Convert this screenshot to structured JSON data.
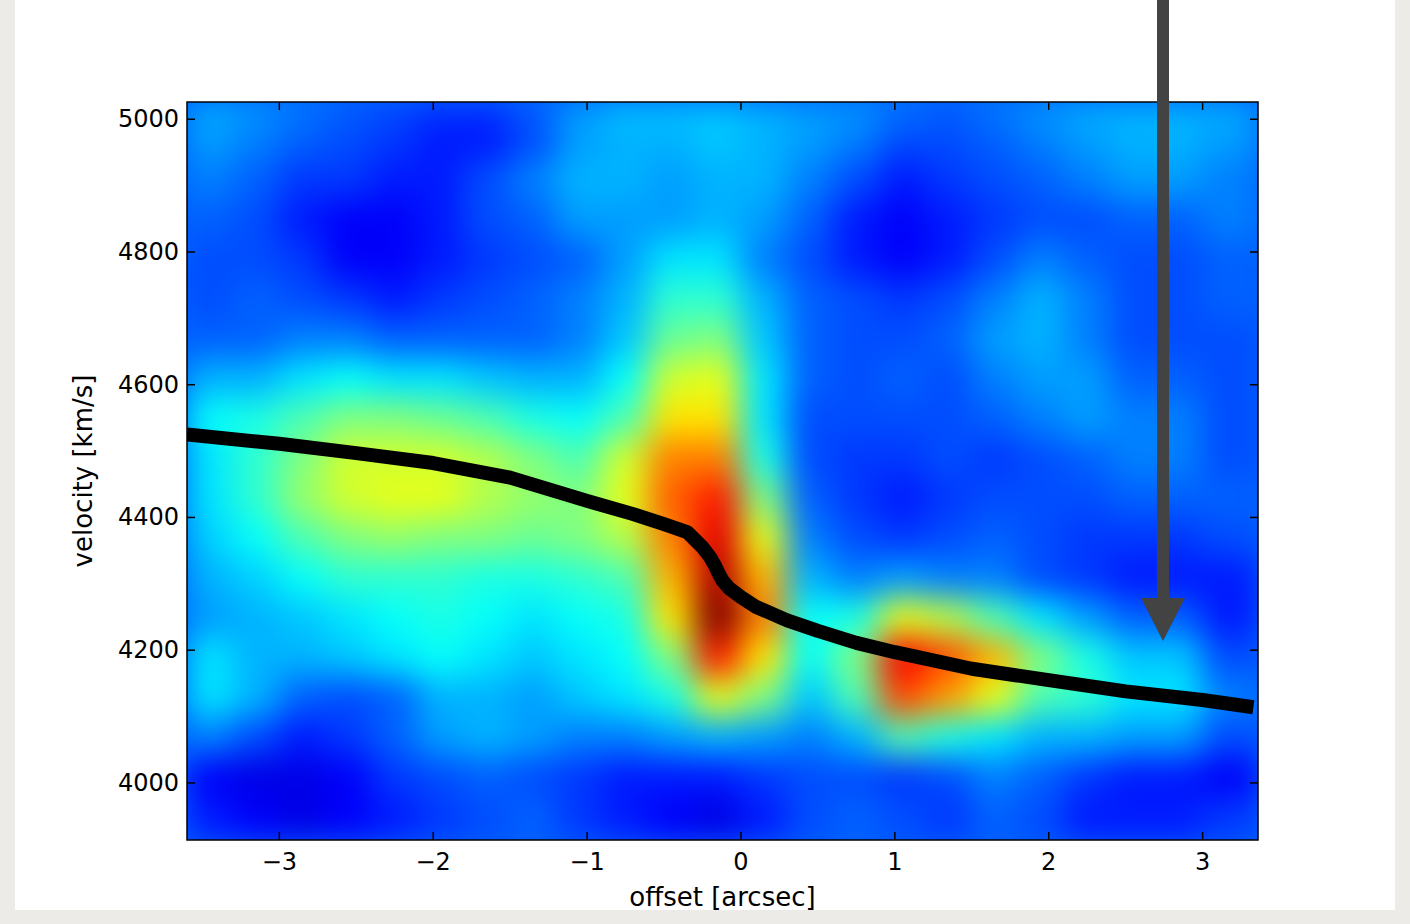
{
  "chart_data": {
    "type": "heatmap",
    "x_label": "offset [arcsec]",
    "y_label": "velocity [km/s]",
    "xlim": [
      -3.6,
      3.36
    ],
    "ylim": [
      3914,
      5026
    ],
    "xticks": [
      {
        "value": -3,
        "label": "−3"
      },
      {
        "value": -2,
        "label": "−2"
      },
      {
        "value": -1,
        "label": "−1"
      },
      0,
      1,
      2,
      3
    ],
    "yticks": [
      4000,
      4200,
      4400,
      4600,
      4800,
      5000
    ],
    "grid": false,
    "zlim": [
      0,
      1
    ],
    "x_edges": [
      -3.6,
      -3.3,
      -3.0,
      -2.7,
      -2.4,
      -2.1,
      -1.8,
      -1.5,
      -1.2,
      -0.9,
      -0.6,
      -0.3,
      0.0,
      0.3,
      0.6,
      0.9,
      1.2,
      1.5,
      1.8,
      2.1,
      2.4,
      3.0,
      3.36
    ],
    "y_edges": [
      3914,
      3980,
      4040,
      4100,
      4160,
      4220,
      4280,
      4340,
      4400,
      4460,
      4520,
      4580,
      4640,
      4700,
      4760,
      4820,
      4880,
      4940,
      5000,
      5026
    ],
    "z": [
      [
        0.15,
        0.12,
        0.1,
        0.12,
        0.15,
        0.18,
        0.2,
        0.22,
        0.18,
        0.15,
        0.12,
        0.1,
        0.15,
        0.2,
        0.22,
        0.2,
        0.18,
        0.22,
        0.2,
        0.15,
        0.15,
        0.18
      ],
      [
        0.12,
        0.1,
        0.1,
        0.12,
        0.18,
        0.2,
        0.22,
        0.2,
        0.18,
        0.15,
        0.15,
        0.15,
        0.18,
        0.2,
        0.2,
        0.18,
        0.2,
        0.25,
        0.22,
        0.18,
        0.15,
        0.12
      ],
      [
        0.25,
        0.2,
        0.15,
        0.18,
        0.22,
        0.28,
        0.3,
        0.28,
        0.25,
        0.25,
        0.28,
        0.3,
        0.28,
        0.25,
        0.3,
        0.45,
        0.4,
        0.35,
        0.3,
        0.3,
        0.28,
        0.2
      ],
      [
        0.35,
        0.3,
        0.22,
        0.2,
        0.22,
        0.3,
        0.3,
        0.28,
        0.32,
        0.35,
        0.4,
        0.6,
        0.5,
        0.32,
        0.45,
        0.8,
        0.72,
        0.6,
        0.45,
        0.42,
        0.35,
        0.25
      ],
      [
        0.35,
        0.3,
        0.3,
        0.32,
        0.35,
        0.38,
        0.35,
        0.32,
        0.35,
        0.38,
        0.5,
        0.85,
        0.65,
        0.38,
        0.5,
        0.88,
        0.8,
        0.7,
        0.5,
        0.4,
        0.32,
        0.2
      ],
      [
        0.28,
        0.3,
        0.32,
        0.35,
        0.38,
        0.4,
        0.38,
        0.35,
        0.38,
        0.4,
        0.65,
        1.0,
        0.75,
        0.38,
        0.4,
        0.6,
        0.55,
        0.45,
        0.35,
        0.28,
        0.22,
        0.15
      ],
      [
        0.3,
        0.33,
        0.38,
        0.42,
        0.42,
        0.42,
        0.4,
        0.4,
        0.42,
        0.45,
        0.7,
        0.95,
        0.7,
        0.3,
        0.25,
        0.28,
        0.25,
        0.25,
        0.2,
        0.18,
        0.15,
        0.15
      ],
      [
        0.33,
        0.38,
        0.45,
        0.5,
        0.52,
        0.5,
        0.5,
        0.48,
        0.5,
        0.55,
        0.75,
        0.9,
        0.6,
        0.25,
        0.2,
        0.18,
        0.2,
        0.22,
        0.2,
        0.18,
        0.18,
        0.2
      ],
      [
        0.35,
        0.42,
        0.52,
        0.58,
        0.6,
        0.6,
        0.55,
        0.52,
        0.5,
        0.6,
        0.78,
        0.85,
        0.5,
        0.22,
        0.18,
        0.15,
        0.18,
        0.2,
        0.2,
        0.2,
        0.22,
        0.22
      ],
      [
        0.35,
        0.42,
        0.5,
        0.58,
        0.58,
        0.58,
        0.55,
        0.5,
        0.45,
        0.58,
        0.75,
        0.75,
        0.4,
        0.2,
        0.18,
        0.18,
        0.2,
        0.18,
        0.2,
        0.22,
        0.25,
        0.2
      ],
      [
        0.38,
        0.4,
        0.45,
        0.5,
        0.5,
        0.48,
        0.45,
        0.4,
        0.38,
        0.45,
        0.65,
        0.65,
        0.35,
        0.2,
        0.2,
        0.2,
        0.2,
        0.22,
        0.25,
        0.28,
        0.25,
        0.2
      ],
      [
        0.3,
        0.3,
        0.35,
        0.38,
        0.35,
        0.35,
        0.32,
        0.3,
        0.3,
        0.38,
        0.58,
        0.6,
        0.35,
        0.22,
        0.2,
        0.22,
        0.2,
        0.25,
        0.28,
        0.28,
        0.22,
        0.2
      ],
      [
        0.22,
        0.22,
        0.25,
        0.25,
        0.22,
        0.22,
        0.22,
        0.22,
        0.25,
        0.32,
        0.48,
        0.5,
        0.32,
        0.22,
        0.2,
        0.2,
        0.22,
        0.28,
        0.3,
        0.25,
        0.2,
        0.2
      ],
      [
        0.2,
        0.22,
        0.2,
        0.18,
        0.15,
        0.18,
        0.2,
        0.22,
        0.25,
        0.3,
        0.42,
        0.42,
        0.3,
        0.22,
        0.2,
        0.18,
        0.2,
        0.25,
        0.3,
        0.25,
        0.2,
        0.22
      ],
      [
        0.2,
        0.2,
        0.18,
        0.12,
        0.12,
        0.15,
        0.18,
        0.2,
        0.22,
        0.28,
        0.35,
        0.35,
        0.25,
        0.2,
        0.15,
        0.12,
        0.15,
        0.2,
        0.25,
        0.22,
        0.2,
        0.22
      ],
      [
        0.22,
        0.2,
        0.15,
        0.12,
        0.12,
        0.15,
        0.2,
        0.22,
        0.28,
        0.28,
        0.28,
        0.3,
        0.28,
        0.22,
        0.15,
        0.12,
        0.15,
        0.18,
        0.2,
        0.2,
        0.22,
        0.25
      ],
      [
        0.25,
        0.22,
        0.18,
        0.18,
        0.15,
        0.15,
        0.2,
        0.25,
        0.3,
        0.3,
        0.28,
        0.3,
        0.3,
        0.25,
        0.2,
        0.15,
        0.18,
        0.2,
        0.22,
        0.25,
        0.28,
        0.25
      ],
      [
        0.28,
        0.25,
        0.22,
        0.2,
        0.18,
        0.15,
        0.15,
        0.2,
        0.28,
        0.3,
        0.3,
        0.32,
        0.3,
        0.28,
        0.25,
        0.2,
        0.2,
        0.22,
        0.25,
        0.28,
        0.3,
        0.28
      ],
      [
        0.3,
        0.28,
        0.25,
        0.22,
        0.2,
        0.18,
        0.18,
        0.22,
        0.28,
        0.32,
        0.32,
        0.32,
        0.3,
        0.28,
        0.28,
        0.25,
        0.22,
        0.25,
        0.28,
        0.3,
        0.3,
        0.3
      ]
    ],
    "series": [
      {
        "type": "line",
        "color": "#000000",
        "x": [
          -3.6,
          -3,
          -2.5,
          -2,
          -1.5,
          -1,
          -0.7,
          -0.5,
          -0.35,
          -0.25,
          -0.2,
          -0.17,
          -0.15,
          -0.12,
          -0.08,
          0,
          0.1,
          0.3,
          0.5,
          0.75,
          1,
          1.5,
          2,
          2.5,
          3,
          3.33
        ],
        "values": [
          4525,
          4511,
          4497,
          4482,
          4460,
          4425,
          4405,
          4390,
          4378,
          4355,
          4340,
          4328,
          4318,
          4305,
          4294,
          4280,
          4265,
          4245,
          4229,
          4211,
          4197,
          4172,
          4155,
          4138,
          4125,
          4114
        ]
      }
    ]
  }
}
